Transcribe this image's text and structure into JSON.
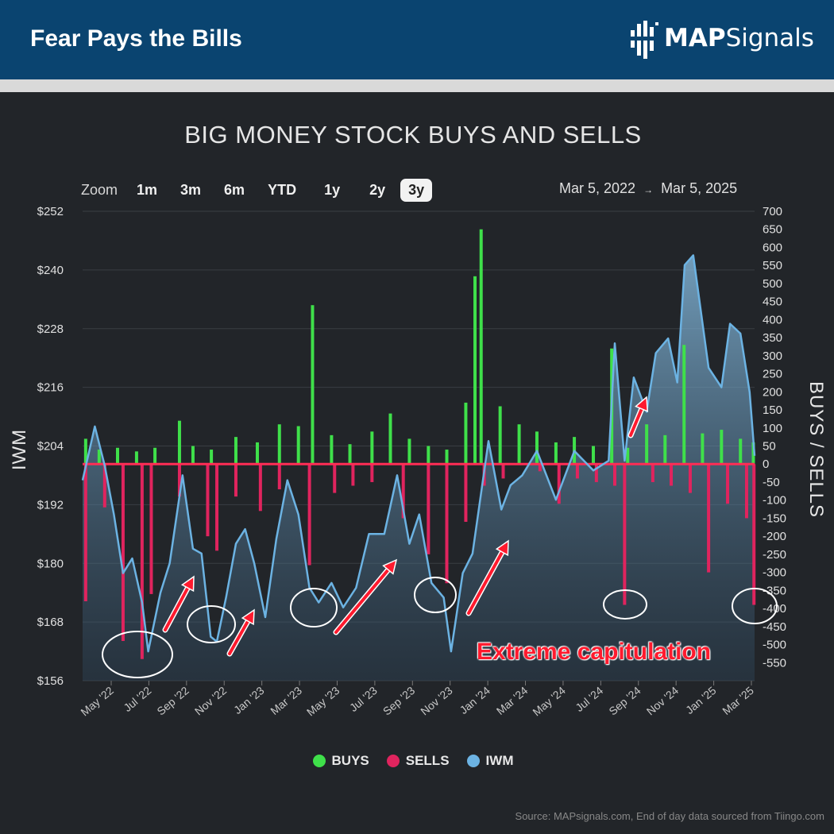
{
  "header": {
    "title": "Fear Pays the Bills",
    "logo_bold": "MAP",
    "logo_rest": "Signals"
  },
  "colors": {
    "header_bg": "#0a4470",
    "buys": "#3fe04a",
    "sells": "#e0245e",
    "iwm": "#6cb3e3",
    "annotation": "#ff1a2e"
  },
  "zoom": {
    "label": "Zoom",
    "buttons": [
      "1m",
      "3m",
      "6m",
      "YTD",
      "1y",
      "2y",
      "3y"
    ],
    "active": "3y"
  },
  "range": {
    "start": "Mar 5, 2022",
    "end": "Mar 5, 2025"
  },
  "legend": {
    "buys": "BUYS",
    "sells": "SELLS",
    "iwm": "IWM"
  },
  "source": "Source: MAPsignals.com, End of day data sourced from Tiingo.com",
  "annotation": "Extreme capitulation",
  "chart_data": {
    "type": "bar",
    "title": "BIG MONEY STOCK BUYS AND SELLS",
    "ylabel_left": "IWM",
    "ylabel_right": "BUYS / SELLS",
    "y_left_ticks": [
      "$252",
      "$240",
      "$228",
      "$216",
      "$204",
      "$192",
      "$180",
      "$168",
      "$156"
    ],
    "y_left_range": [
      156,
      252
    ],
    "y_right_ticks": [
      "700",
      "650",
      "600",
      "550",
      "500",
      "450",
      "400",
      "350",
      "300",
      "250",
      "200",
      "150",
      "100",
      "50",
      "0",
      "-50",
      "-100",
      "-150",
      "-200",
      "-250",
      "-300",
      "-350",
      "-400",
      "-450",
      "-500",
      "-550"
    ],
    "y_right_range": [
      -600,
      700
    ],
    "x_ticks": [
      "May '22",
      "Jul '22",
      "Sep '22",
      "Nov '22",
      "Jan '23",
      "Mar '23",
      "May '23",
      "Jul '23",
      "Sep '23",
      "Nov '23",
      "Jan '24",
      "Mar '24",
      "May '24",
      "Jul '24",
      "Sep '24",
      "Nov '24",
      "Jan '25",
      "Mar '25"
    ],
    "x_range": [
      "2022-03-05",
      "2025-03-05"
    ],
    "grid": true,
    "legend_position": "bottom",
    "series": [
      {
        "name": "BUYS",
        "values": [
          [
            "2022-03-10",
            70
          ],
          [
            "2022-04-01",
            40
          ],
          [
            "2022-05-01",
            45
          ],
          [
            "2022-06-01",
            35
          ],
          [
            "2022-07-01",
            45
          ],
          [
            "2022-08-10",
            120
          ],
          [
            "2022-09-01",
            50
          ],
          [
            "2022-10-01",
            40
          ],
          [
            "2022-11-10",
            75
          ],
          [
            "2022-12-15",
            60
          ],
          [
            "2023-01-20",
            110
          ],
          [
            "2023-02-20",
            105
          ],
          [
            "2023-03-15",
            440
          ],
          [
            "2023-04-15",
            80
          ],
          [
            "2023-05-15",
            55
          ],
          [
            "2023-06-20",
            90
          ],
          [
            "2023-07-20",
            140
          ],
          [
            "2023-08-20",
            70
          ],
          [
            "2023-09-20",
            50
          ],
          [
            "2023-10-20",
            40
          ],
          [
            "2023-11-20",
            170
          ],
          [
            "2023-12-05",
            520
          ],
          [
            "2023-12-15",
            650
          ],
          [
            "2024-01-15",
            160
          ],
          [
            "2024-02-15",
            110
          ],
          [
            "2024-03-15",
            90
          ],
          [
            "2024-04-15",
            60
          ],
          [
            "2024-05-15",
            75
          ],
          [
            "2024-06-15",
            50
          ],
          [
            "2024-07-15",
            320
          ],
          [
            "2024-08-10",
            45
          ],
          [
            "2024-09-10",
            110
          ],
          [
            "2024-10-10",
            80
          ],
          [
            "2024-11-10",
            330
          ],
          [
            "2024-12-10",
            85
          ],
          [
            "2025-01-10",
            95
          ],
          [
            "2025-02-10",
            70
          ],
          [
            "2025-03-03",
            60
          ]
        ]
      },
      {
        "name": "SELLS",
        "values": [
          [
            "2022-03-10",
            -380
          ],
          [
            "2022-04-10",
            -120
          ],
          [
            "2022-05-10",
            -490
          ],
          [
            "2022-06-10",
            -540
          ],
          [
            "2022-06-25",
            -360
          ],
          [
            "2022-08-10",
            -90
          ],
          [
            "2022-09-25",
            -200
          ],
          [
            "2022-10-10",
            -240
          ],
          [
            "2022-11-10",
            -90
          ],
          [
            "2022-12-20",
            -130
          ],
          [
            "2023-01-20",
            -70
          ],
          [
            "2023-03-10",
            -280
          ],
          [
            "2023-04-20",
            -80
          ],
          [
            "2023-05-20",
            -60
          ],
          [
            "2023-06-20",
            -50
          ],
          [
            "2023-08-10",
            -150
          ],
          [
            "2023-09-20",
            -250
          ],
          [
            "2023-10-20",
            -330
          ],
          [
            "2023-11-20",
            -160
          ],
          [
            "2023-12-20",
            -60
          ],
          [
            "2024-01-20",
            -40
          ],
          [
            "2024-03-20",
            -20
          ],
          [
            "2024-04-20",
            -110
          ],
          [
            "2024-05-20",
            -40
          ],
          [
            "2024-06-20",
            -50
          ],
          [
            "2024-07-20",
            -60
          ],
          [
            "2024-08-05",
            -390
          ],
          [
            "2024-09-20",
            -50
          ],
          [
            "2024-10-20",
            -60
          ],
          [
            "2024-11-20",
            -80
          ],
          [
            "2024-12-20",
            -300
          ],
          [
            "2025-01-20",
            -110
          ],
          [
            "2025-02-20",
            -150
          ],
          [
            "2025-03-04",
            -390
          ]
        ]
      },
      {
        "name": "IWM",
        "values": [
          [
            "2022-03-05",
            197
          ],
          [
            "2022-03-25",
            208
          ],
          [
            "2022-04-10",
            200
          ],
          [
            "2022-04-25",
            190
          ],
          [
            "2022-05-10",
            178
          ],
          [
            "2022-05-25",
            181
          ],
          [
            "2022-06-10",
            172
          ],
          [
            "2022-06-20",
            162
          ],
          [
            "2022-07-10",
            174
          ],
          [
            "2022-07-25",
            180
          ],
          [
            "2022-08-15",
            198
          ],
          [
            "2022-09-01",
            183
          ],
          [
            "2022-09-15",
            182
          ],
          [
            "2022-09-30",
            165
          ],
          [
            "2022-10-10",
            164
          ],
          [
            "2022-10-25",
            173
          ],
          [
            "2022-11-10",
            184
          ],
          [
            "2022-11-25",
            187
          ],
          [
            "2022-12-10",
            180
          ],
          [
            "2022-12-28",
            169
          ],
          [
            "2023-01-15",
            185
          ],
          [
            "2023-02-02",
            197
          ],
          [
            "2023-02-20",
            190
          ],
          [
            "2023-03-10",
            175
          ],
          [
            "2023-03-25",
            172
          ],
          [
            "2023-04-15",
            176
          ],
          [
            "2023-05-04",
            171
          ],
          [
            "2023-05-25",
            175
          ],
          [
            "2023-06-15",
            186
          ],
          [
            "2023-07-10",
            186
          ],
          [
            "2023-07-31",
            198
          ],
          [
            "2023-08-20",
            184
          ],
          [
            "2023-09-05",
            190
          ],
          [
            "2023-09-25",
            176
          ],
          [
            "2023-10-15",
            173
          ],
          [
            "2023-10-27",
            162
          ],
          [
            "2023-11-15",
            178
          ],
          [
            "2023-12-01",
            182
          ],
          [
            "2023-12-27",
            205
          ],
          [
            "2024-01-17",
            191
          ],
          [
            "2024-02-01",
            196
          ],
          [
            "2024-02-20",
            198
          ],
          [
            "2024-03-15",
            203
          ],
          [
            "2024-04-15",
            193
          ],
          [
            "2024-05-15",
            203
          ],
          [
            "2024-06-15",
            199
          ],
          [
            "2024-07-10",
            201
          ],
          [
            "2024-07-20",
            225
          ],
          [
            "2024-08-05",
            201
          ],
          [
            "2024-08-20",
            218
          ],
          [
            "2024-09-10",
            211
          ],
          [
            "2024-09-25",
            223
          ],
          [
            "2024-10-15",
            226
          ],
          [
            "2024-10-30",
            217
          ],
          [
            "2024-11-11",
            241
          ],
          [
            "2024-11-25",
            243
          ],
          [
            "2024-12-20",
            220
          ],
          [
            "2025-01-10",
            216
          ],
          [
            "2025-01-24",
            229
          ],
          [
            "2025-02-10",
            227
          ],
          [
            "2025-02-25",
            215
          ],
          [
            "2025-03-05",
            202
          ]
        ]
      }
    ]
  }
}
